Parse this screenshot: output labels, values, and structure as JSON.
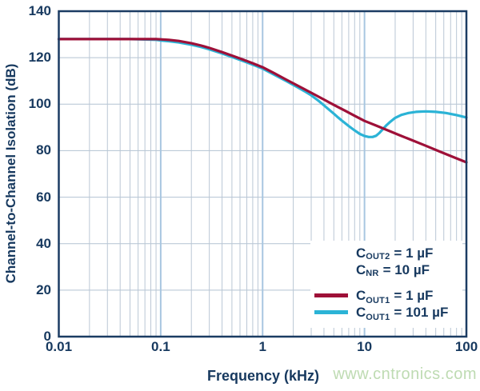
{
  "watermark": {
    "text": "www.cntronics.com",
    "color": "#bedbb2"
  },
  "chart_data": {
    "type": "line",
    "title": "",
    "xlabel": "Frequency (kHz)",
    "ylabel": "Channel-to-Channel Isolation (dB)",
    "x_scale": "log",
    "xlim": [
      0.01,
      100
    ],
    "ylim": [
      0,
      140
    ],
    "grid": true,
    "legend_position": "lower right",
    "colors": {
      "axis": "#1b3c63",
      "text": "#17395f",
      "grid_major": "#a8c6e0",
      "grid_minor": "#bac7d5",
      "grid_horizontal": "#b3c2d2",
      "background": "#ffffff"
    },
    "x_ticks": [
      {
        "value": 0.01,
        "label": "0.01"
      },
      {
        "value": 0.1,
        "label": "0.1"
      },
      {
        "value": 1,
        "label": "1"
      },
      {
        "value": 10,
        "label": "10"
      },
      {
        "value": 100,
        "label": "100"
      }
    ],
    "y_ticks": [
      {
        "value": 0,
        "label": "0"
      },
      {
        "value": 20,
        "label": "20"
      },
      {
        "value": 40,
        "label": "40"
      },
      {
        "value": 60,
        "label": "60"
      },
      {
        "value": 80,
        "label": "80"
      },
      {
        "value": 100,
        "label": "100"
      },
      {
        "value": 120,
        "label": "120"
      },
      {
        "value": 140,
        "label": "140"
      }
    ],
    "legend_notes": [
      {
        "sym": "C",
        "sub": "OUT2",
        "rest": "= 1 µF"
      },
      {
        "sym": "C",
        "sub": "NR",
        "rest": "= 10 µF"
      }
    ],
    "series": [
      {
        "name": "COUT1 = 1 uF",
        "label_sym": "C",
        "label_sub": "OUT1",
        "label_rest": "= 1 µF",
        "color": "#9e1038",
        "points": [
          [
            0.01,
            128
          ],
          [
            0.03,
            128
          ],
          [
            0.06,
            128
          ],
          [
            0.09,
            128
          ],
          [
            0.1,
            127.9
          ],
          [
            0.12,
            127.7
          ],
          [
            0.15,
            127.2
          ],
          [
            0.2,
            126.2
          ],
          [
            0.25,
            125.2
          ],
          [
            0.3,
            124.2
          ],
          [
            0.4,
            122.4
          ],
          [
            0.5,
            120.9
          ],
          [
            0.65,
            119.1
          ],
          [
            0.8,
            117.6
          ],
          [
            1,
            115.9
          ],
          [
            1.3,
            113.3
          ],
          [
            1.7,
            110.6
          ],
          [
            2.2,
            108
          ],
          [
            3,
            104.9
          ],
          [
            4,
            102
          ],
          [
            5,
            99.7
          ],
          [
            6.5,
            97.1
          ],
          [
            8,
            95
          ],
          [
            10,
            92.8
          ],
          [
            13,
            90.8
          ],
          [
            17,
            88.7
          ],
          [
            22,
            86.7
          ],
          [
            30,
            84.3
          ],
          [
            40,
            82.1
          ],
          [
            55,
            79.6
          ],
          [
            75,
            77.2
          ],
          [
            100,
            75
          ]
        ]
      },
      {
        "name": "COUT1 = 101 uF",
        "label_sym": "C",
        "label_sub": "OUT1",
        "label_rest": "= 101 µF",
        "color": "#2bb3d6",
        "points": [
          [
            0.01,
            128
          ],
          [
            0.05,
            128
          ],
          [
            0.09,
            127.7
          ],
          [
            0.1,
            127.4
          ],
          [
            0.12,
            127.1
          ],
          [
            0.15,
            126.6
          ],
          [
            0.2,
            125.6
          ],
          [
            0.25,
            124.6
          ],
          [
            0.3,
            123.6
          ],
          [
            0.4,
            121.8
          ],
          [
            0.5,
            120.3
          ],
          [
            0.65,
            118.5
          ],
          [
            0.8,
            117
          ],
          [
            1,
            115.3
          ],
          [
            1.3,
            112.7
          ],
          [
            1.7,
            110
          ],
          [
            2.2,
            107.3
          ],
          [
            2.6,
            105.5
          ],
          [
            3,
            103.8
          ],
          [
            3.5,
            101.6
          ],
          [
            4,
            99.5
          ],
          [
            4.5,
            97.6
          ],
          [
            5,
            95.9
          ],
          [
            5.5,
            94.3
          ],
          [
            6,
            92.9
          ],
          [
            7,
            90.6
          ],
          [
            8,
            88.7
          ],
          [
            9,
            87.2
          ],
          [
            10,
            86.3
          ],
          [
            11,
            85.9
          ],
          [
            12,
            85.9
          ],
          [
            13,
            86.4
          ],
          [
            14,
            87.6
          ],
          [
            15,
            89.1
          ],
          [
            16.5,
            91
          ],
          [
            18,
            92.5
          ],
          [
            20,
            94.1
          ],
          [
            23,
            95.4
          ],
          [
            27,
            96.2
          ],
          [
            32,
            96.7
          ],
          [
            40,
            96.9
          ],
          [
            50,
            96.7
          ],
          [
            63,
            96.2
          ],
          [
            80,
            95.3
          ],
          [
            100,
            94.3
          ]
        ]
      }
    ]
  }
}
